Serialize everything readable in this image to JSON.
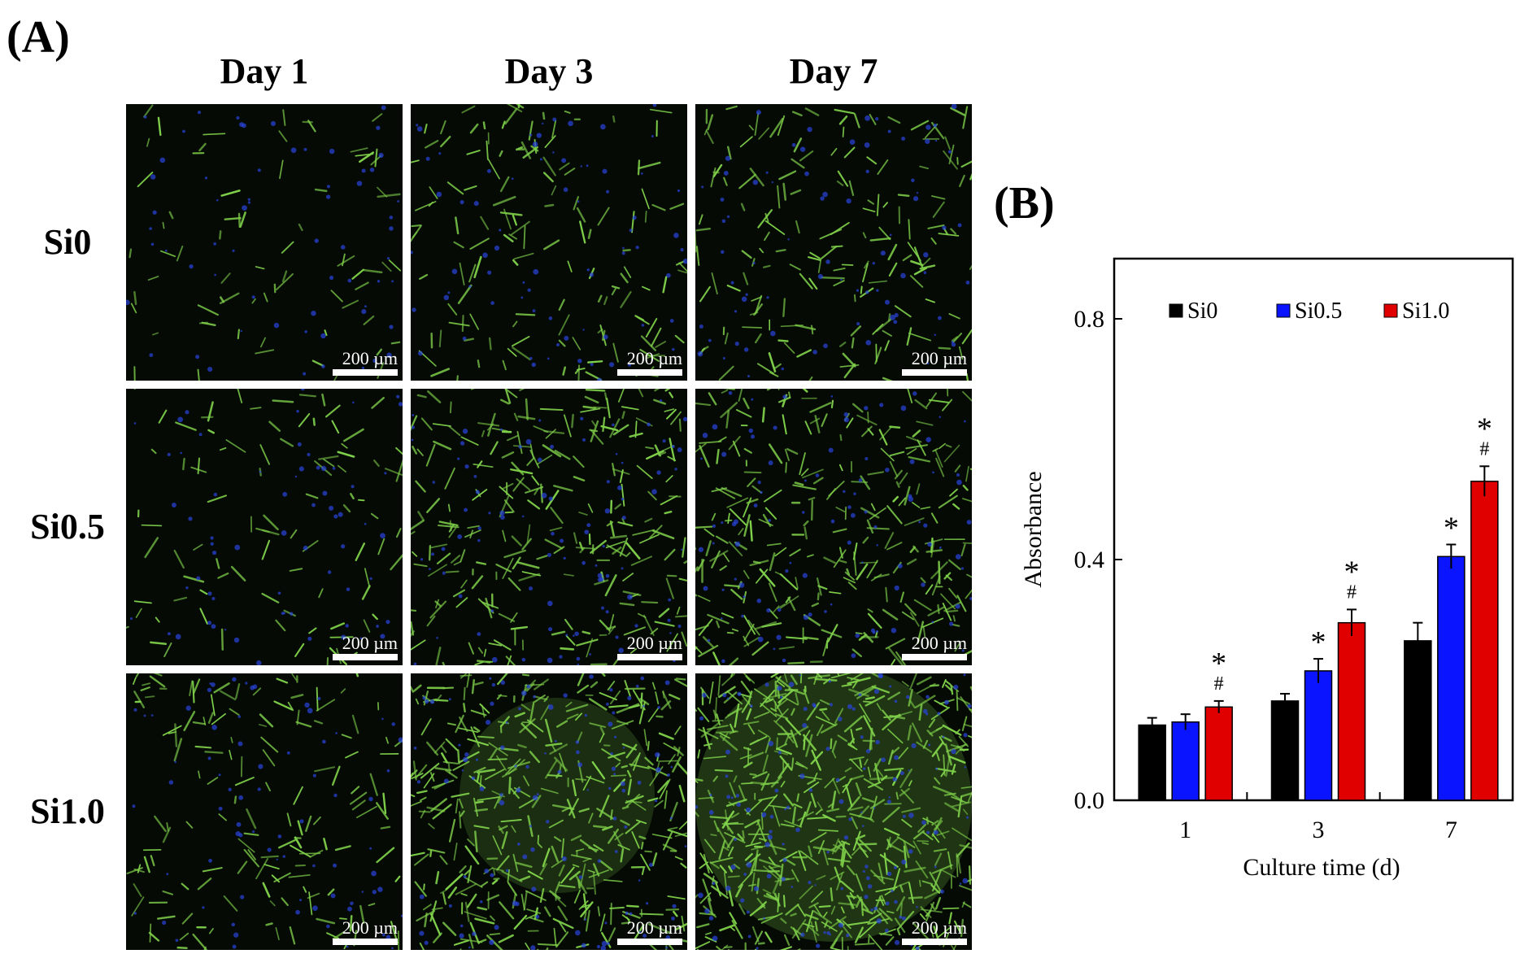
{
  "panel_a": {
    "letter": "(A)",
    "columns": [
      "Day 1",
      "Day 3",
      "Day 7"
    ],
    "rows": [
      "Si0",
      "Si0.5",
      "Si1.0"
    ],
    "scale_bar_label": "200 µm"
  },
  "panel_b": {
    "letter": "(B)"
  },
  "colors": {
    "Si0": "#000000",
    "Si0.5": "#0a14ff",
    "Si1.0": "#e00000",
    "cell_green": "#7fd04a",
    "nucleus_blue": "#2a44e0"
  },
  "chart_data": {
    "type": "bar",
    "categories": [
      "1",
      "3",
      "7"
    ],
    "series": [
      {
        "name": "Si0",
        "values": [
          0.125,
          0.165,
          0.265
        ],
        "errors": [
          0.012,
          0.012,
          0.03
        ]
      },
      {
        "name": "Si0.5",
        "values": [
          0.13,
          0.215,
          0.405
        ],
        "errors": [
          0.013,
          0.02,
          0.02
        ]
      },
      {
        "name": "Si1.0",
        "values": [
          0.155,
          0.295,
          0.53
        ],
        "errors": [
          0.01,
          0.022,
          0.025
        ]
      }
    ],
    "annotations": [
      {
        "category": "1",
        "series": "Si1.0",
        "marks": [
          "*",
          "#"
        ]
      },
      {
        "category": "3",
        "series": "Si0.5",
        "marks": [
          "*"
        ]
      },
      {
        "category": "3",
        "series": "Si1.0",
        "marks": [
          "*",
          "#"
        ]
      },
      {
        "category": "7",
        "series": "Si0.5",
        "marks": [
          "*"
        ]
      },
      {
        "category": "7",
        "series": "Si1.0",
        "marks": [
          "*",
          "#"
        ]
      }
    ],
    "xlabel": "Culture time (d)",
    "ylabel": "Absorbance",
    "ylim": [
      0,
      0.9
    ],
    "yticks": [
      "0.0",
      "0.4",
      "0.8"
    ],
    "ytick_values": [
      0.0,
      0.4,
      0.8
    ],
    "legend": "top",
    "grid": false
  }
}
